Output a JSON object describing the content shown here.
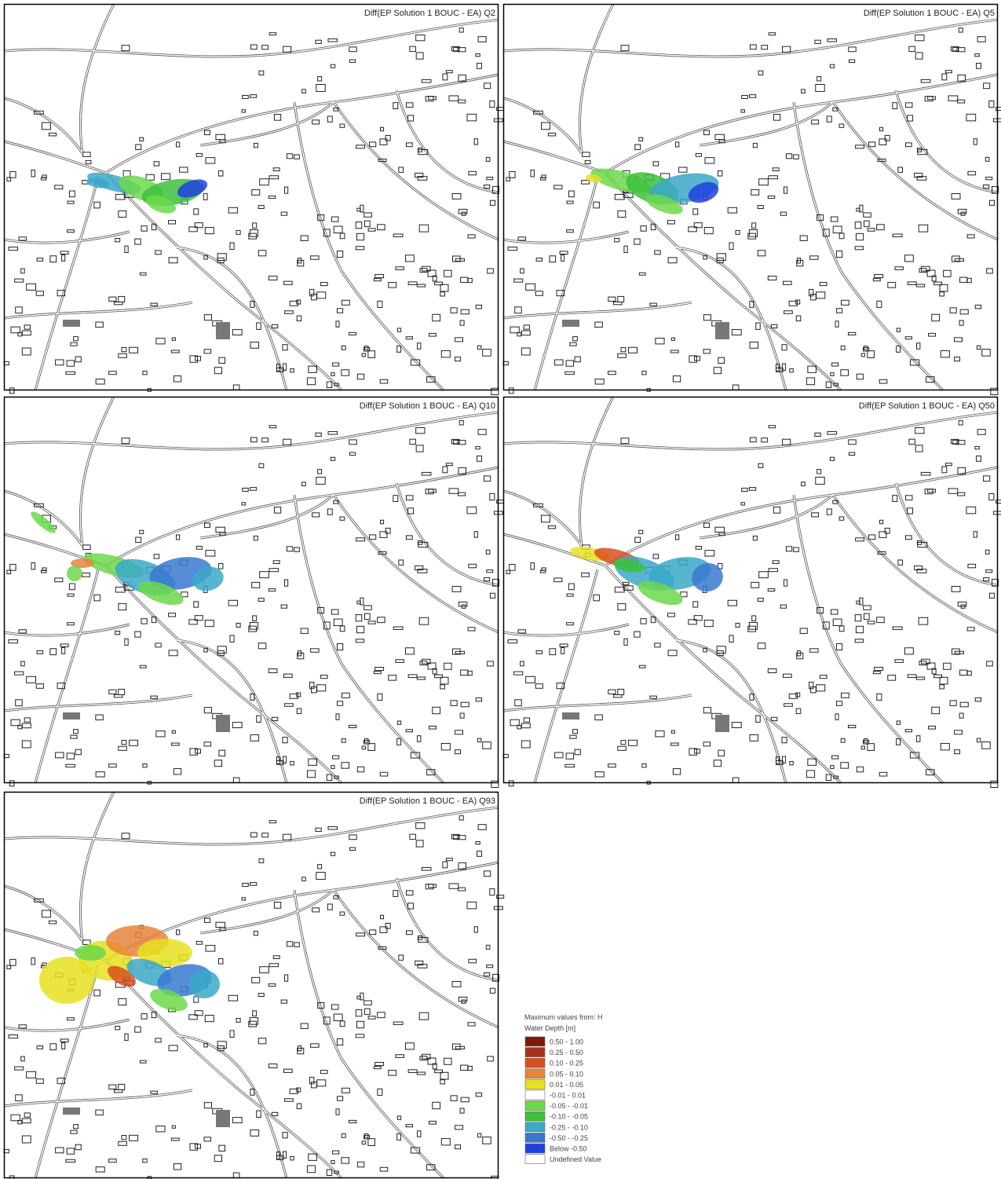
{
  "panels": [
    {
      "title": "Diff(EP Solution 1 BOUC - EA) Q2"
    },
    {
      "title": "Diff(EP Solution 1 BOUC - EA) Q5"
    },
    {
      "title": "Diff(EP Solution 1 BOUC - EA) Q10"
    },
    {
      "title": "Diff(EP Solution 1 BOUC - EA) Q50"
    },
    {
      "title": "Diff(EP Solution 1 BOUC - EA) Q93"
    }
  ],
  "legend": {
    "title": "Maximum values from: H",
    "subtitle": "Water Depth [m]",
    "entries": [
      {
        "label": "0.50 - 1.00",
        "color": "#7a1a0a"
      },
      {
        "label": "0.25 - 0.50",
        "color": "#a8321c"
      },
      {
        "label": "0.10 - 0.25",
        "color": "#d8501e"
      },
      {
        "label": "0.05 - 0.10",
        "color": "#e8843c"
      },
      {
        "label": "0.01 - 0.05",
        "color": "#e8e020"
      },
      {
        "label": "-0.01 - 0.01",
        "color": "#ffffff"
      },
      {
        "label": "-0.05 - -0.01",
        "color": "#6cd84a"
      },
      {
        "label": "-0.10 - -0.05",
        "color": "#3cc03c"
      },
      {
        "label": "-0.25 - -0.10",
        "color": "#3aa8c8"
      },
      {
        "label": "-0.50 - -0.25",
        "color": "#3a78d0"
      },
      {
        "label": "Below -0.50",
        "color": "#2040e0"
      },
      {
        "label": "Undefined Value",
        "color": "#ffffff"
      }
    ]
  }
}
